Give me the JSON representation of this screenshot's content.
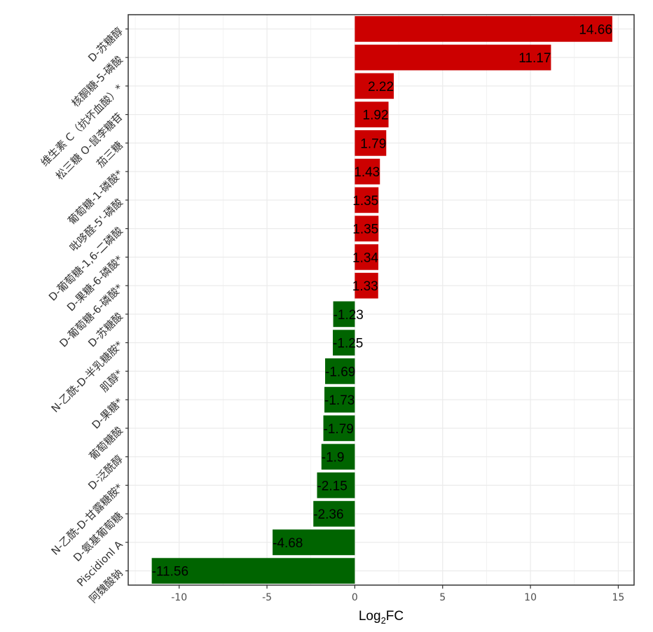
{
  "chart_data": {
    "type": "bar",
    "orientation": "horizontal",
    "categories": [
      "D-苏糖醇",
      "核酮糖-5-磷酸",
      "维生素 C（抗坏血酸）*",
      "松三糖 O-鼠李糖苷",
      "茄三糖",
      "葡萄糖-1-磷酸*",
      "吡哆醛-5'-磷酸",
      "D-葡萄糖-1,6-二磷酸",
      "D-果糖-6-磷酸*",
      "D-葡萄糖-6-磷酸*",
      "D-苏糖酸",
      "N-乙酰-D-半乳糖胺*",
      "肌醇*",
      "D-果糖*",
      "葡萄糖酸",
      "D-泛酰醇",
      "N-乙酰-D-甘露糖胺*",
      "D-氨基葡萄糖",
      "Piscidionl A",
      "阿魏酸钠"
    ],
    "values": [
      14.66,
      11.17,
      2.22,
      1.92,
      1.79,
      1.43,
      1.35,
      1.35,
      1.34,
      1.33,
      -1.23,
      -1.25,
      -1.69,
      -1.73,
      -1.79,
      -1.9,
      -2.15,
      -2.36,
      -4.68,
      -11.56
    ],
    "value_labels": [
      "14.66",
      "11.17",
      "2.22",
      "1.92",
      "1.79",
      "1.43",
      "1.35",
      "1.35",
      "1.34",
      "1.33",
      "-1.23",
      "-1.25",
      "-1.69",
      "-1.73",
      "-1.79",
      "-1.9",
      "-2.15",
      "-2.36",
      "-4.68",
      "-11.56"
    ],
    "xlabel_main": "Log",
    "xlabel_sub": "2",
    "xlabel_tail": "FC",
    "ylabel": "",
    "xlim": [
      -12.9,
      15.9
    ],
    "xticks": [
      -10,
      -5,
      0,
      5,
      10,
      15
    ],
    "xtick_labels": [
      "-10",
      "-5",
      "0",
      "5",
      "10",
      "15"
    ],
    "grid": true,
    "colors": {
      "positive": "#cc0000",
      "negative": "#006400",
      "grid": "#ebebeb",
      "frame": "#333333"
    }
  }
}
